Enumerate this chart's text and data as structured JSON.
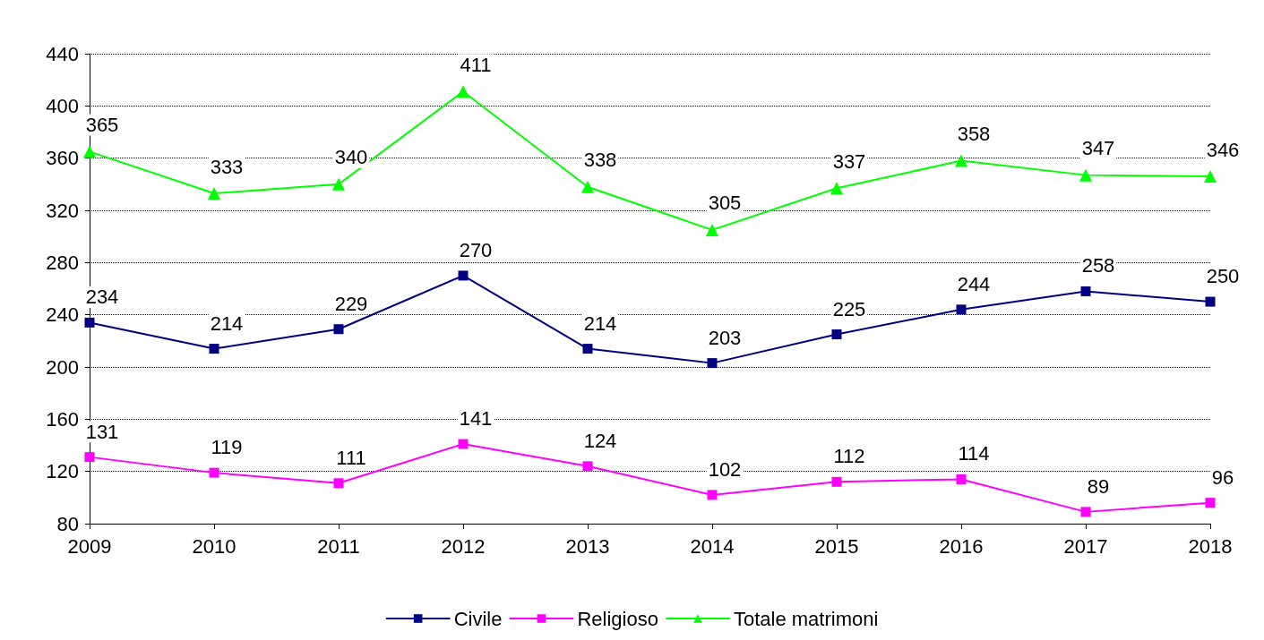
{
  "chart_data": {
    "type": "line",
    "categories": [
      "2009",
      "2010",
      "2011",
      "2012",
      "2013",
      "2014",
      "2015",
      "2016",
      "2017",
      "2018"
    ],
    "series": [
      {
        "name": "Civile",
        "color": "#000080",
        "marker": "square",
        "values": [
          234,
          214,
          229,
          270,
          214,
          203,
          225,
          244,
          258,
          250
        ]
      },
      {
        "name": "Religioso",
        "color": "#ff00ff",
        "marker": "square",
        "values": [
          131,
          119,
          111,
          141,
          124,
          102,
          112,
          114,
          89,
          96
        ]
      },
      {
        "name": "Totale matrimoni",
        "color": "#00ff00",
        "marker": "triangle",
        "values": [
          365,
          333,
          340,
          411,
          338,
          305,
          337,
          358,
          347,
          346
        ]
      }
    ],
    "ylim": [
      80,
      440
    ],
    "yticks": [
      80,
      120,
      160,
      200,
      240,
      280,
      320,
      360,
      400,
      440
    ],
    "grid": "y",
    "legend": "bottom",
    "data_labels": true,
    "line_style": "solid"
  }
}
